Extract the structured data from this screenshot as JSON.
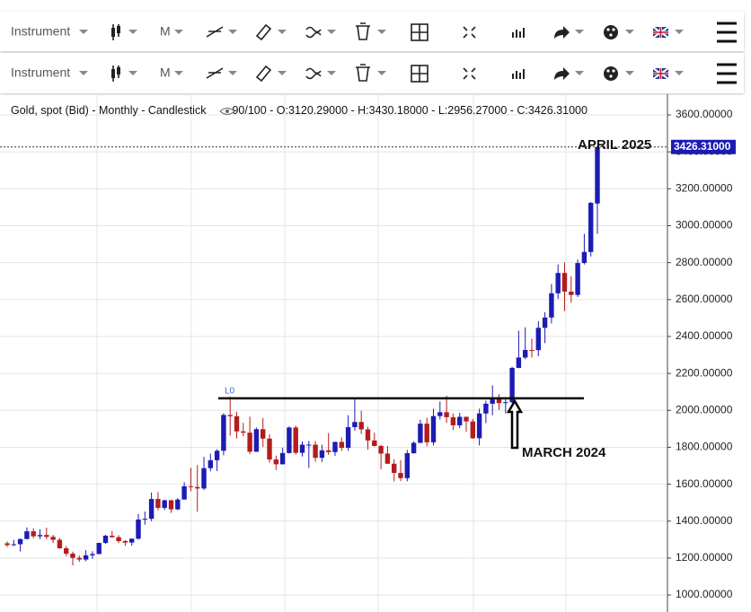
{
  "toolbars": [
    {
      "instrument": "Instrument",
      "timeframe": "M"
    },
    {
      "instrument": "Instrument",
      "timeframe": "M"
    }
  ],
  "chart_data": {
    "type": "candlestick",
    "title": "Gold, spot (Bid) - Monthly - Candlestick",
    "visible_count": "90/100",
    "ohlc_labels": [
      "O:3120.29000",
      "H:3430.18000",
      "L:2956.27000",
      "C:3426.31000"
    ],
    "open": [
      1280,
      1270,
      1275,
      1303,
      1345,
      1318,
      1325,
      1315,
      1299,
      1253,
      1224,
      1201,
      1192,
      1215,
      1222,
      1282,
      1321,
      1313,
      1292,
      1284,
      1305,
      1409,
      1413,
      1520,
      1472,
      1513,
      1464,
      1517,
      1589,
      1585,
      1577,
      1687,
      1730,
      1781,
      1975,
      1968,
      1886,
      1879,
      1776,
      1898,
      1847,
      1734,
      1708,
      1769,
      1907,
      1770,
      1814,
      1814,
      1743,
      1783,
      1774,
      1829,
      1797,
      1909,
      1937,
      1897,
      1837,
      1807,
      1766,
      1711,
      1661,
      1633,
      1768,
      1824,
      1928,
      1827,
      1969,
      1990,
      1963,
      1919,
      1965,
      1940,
      1849,
      1983,
      2036,
      2063,
      2039,
      2044,
      2230,
      2286,
      2327,
      2326,
      2447,
      2503,
      2634,
      2744,
      2643,
      2625,
      2798,
      2858,
      3120.29
    ],
    "high": [
      1290,
      1299,
      1306,
      1366,
      1361,
      1356,
      1365,
      1326,
      1309,
      1265,
      1235,
      1214,
      1243,
      1237,
      1284,
      1326,
      1347,
      1324,
      1298,
      1306,
      1439,
      1452,
      1555,
      1557,
      1517,
      1516,
      1525,
      1611,
      1689,
      1704,
      1748,
      1765,
      1789,
      1984,
      2075,
      1992,
      1933,
      1966,
      1907,
      1959,
      1871,
      1755,
      1798,
      1913,
      1917,
      1832,
      1834,
      1834,
      1814,
      1877,
      1831,
      1853,
      1974,
      2070,
      1998,
      1910,
      1879,
      1814,
      1807,
      1735,
      1730,
      1786,
      1833,
      1949,
      1960,
      2009,
      2048,
      2079,
      1983,
      1987,
      1966,
      1953,
      2009,
      2052,
      2135,
      2088,
      2065,
      2236,
      2431,
      2450,
      2388,
      2483,
      2531,
      2685,
      2790,
      2801,
      2726,
      2817,
      2956,
      3128,
      3430.18
    ],
    "low": [
      1260,
      1265,
      1236,
      1302,
      1307,
      1303,
      1302,
      1281,
      1250,
      1211,
      1160,
      1180,
      1183,
      1196,
      1221,
      1276,
      1311,
      1281,
      1266,
      1267,
      1300,
      1381,
      1400,
      1459,
      1459,
      1445,
      1459,
      1517,
      1562,
      1451,
      1568,
      1670,
      1671,
      1757,
      1863,
      1848,
      1860,
      1764,
      1775,
      1802,
      1717,
      1677,
      1707,
      1766,
      1761,
      1750,
      1688,
      1722,
      1721,
      1759,
      1753,
      1780,
      1781,
      1890,
      1872,
      1787,
      1805,
      1681,
      1709,
      1615,
      1617,
      1616,
      1765,
      1823,
      1805,
      1810,
      1950,
      1932,
      1893,
      1903,
      1884,
      1846,
      1810,
      1931,
      1973,
      2002,
      1984,
      2039,
      2228,
      2277,
      2286,
      2293,
      2364,
      2471,
      2603,
      2537,
      2583,
      2614,
      2790,
      2833,
      2956.27
    ],
    "close": [
      1270,
      1275,
      1303,
      1345,
      1318,
      1325,
      1315,
      1299,
      1253,
      1224,
      1201,
      1192,
      1215,
      1222,
      1282,
      1321,
      1313,
      1292,
      1284,
      1305,
      1409,
      1413,
      1520,
      1472,
      1513,
      1464,
      1517,
      1589,
      1585,
      1577,
      1687,
      1730,
      1781,
      1975,
      1968,
      1886,
      1879,
      1776,
      1898,
      1847,
      1734,
      1708,
      1769,
      1907,
      1770,
      1814,
      1814,
      1743,
      1783,
      1774,
      1829,
      1797,
      1909,
      1937,
      1897,
      1837,
      1807,
      1766,
      1711,
      1661,
      1633,
      1768,
      1824,
      1928,
      1827,
      1969,
      1990,
      1963,
      1919,
      1965,
      1940,
      1849,
      1983,
      2036,
      2063,
      2039,
      2044,
      2230,
      2286,
      2327,
      2326,
      2447,
      2503,
      2634,
      2744,
      2643,
      2625,
      2798,
      2858,
      3124,
      3426.31
    ],
    "up_color": "#1c1cb4",
    "down_color": "#b41c1c",
    "ylim": [
      908,
      3712
    ],
    "yticks": [
      {
        "value": 1000,
        "label": "1000.00000"
      },
      {
        "value": 1200,
        "label": "1200.00000"
      },
      {
        "value": 1400,
        "label": "1400.00000"
      },
      {
        "value": 1600,
        "label": "1600.00000"
      },
      {
        "value": 1800,
        "label": "1800.00000"
      },
      {
        "value": 2000,
        "label": "2000.00000"
      },
      {
        "value": 2200,
        "label": "2200.00000"
      },
      {
        "value": 2400,
        "label": "2400.00000"
      },
      {
        "value": 2600,
        "label": "2600.00000"
      },
      {
        "value": 2800,
        "label": "2800.00000"
      },
      {
        "value": 3000,
        "label": "3000.00000"
      },
      {
        "value": 3200,
        "label": "3200.00000"
      },
      {
        "value": 3400,
        "label": "3400.00000"
      },
      {
        "value": 3600,
        "label": "3600.00000"
      }
    ],
    "grid": true,
    "last_price": {
      "value": 3426.31,
      "label": "3426.31000"
    },
    "level_line": {
      "label": "L0",
      "value": 2065
    },
    "annotations": [
      "APRIL 2025",
      "MARCH 2024"
    ]
  }
}
